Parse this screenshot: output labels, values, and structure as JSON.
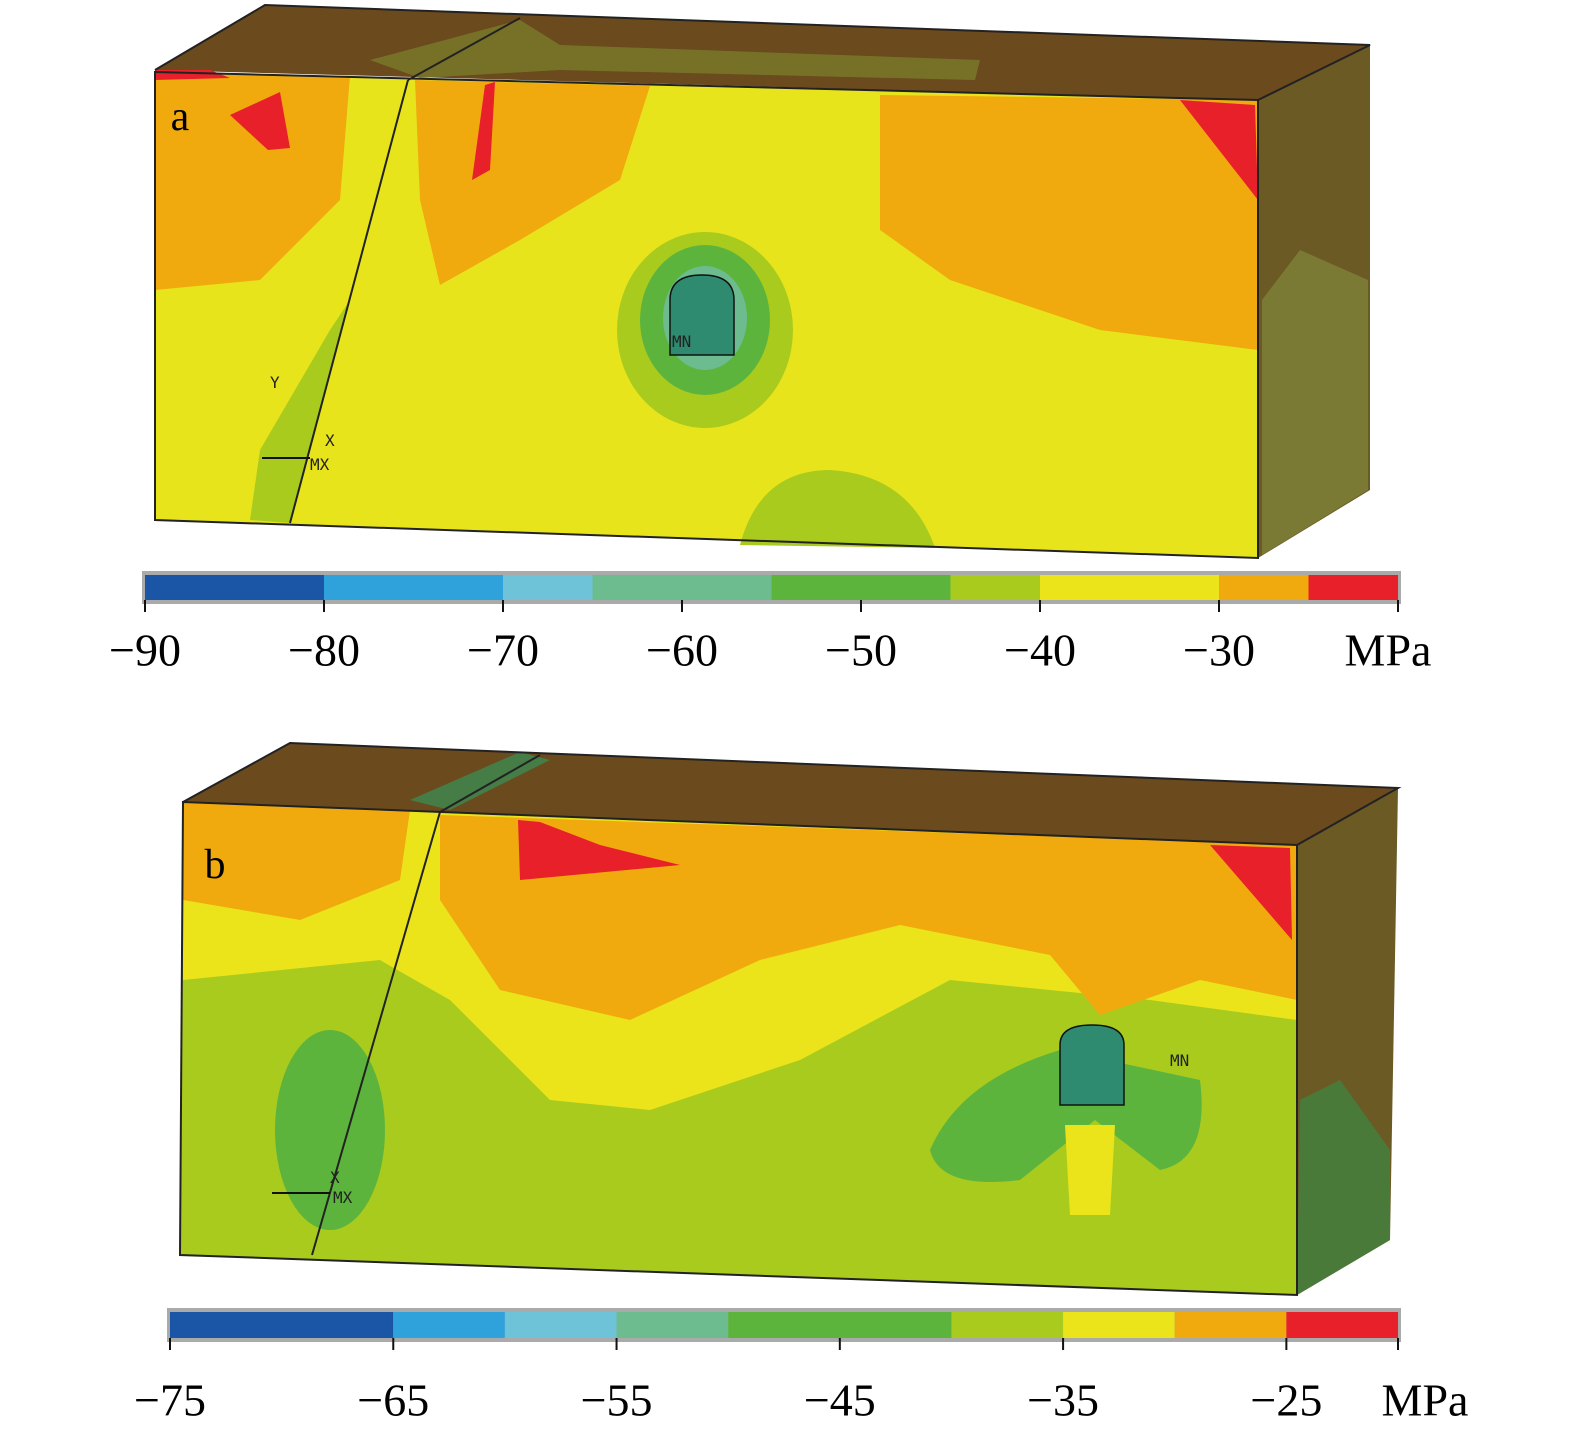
{
  "chart_data": [
    {
      "type": "colorbar",
      "panel_label": "a",
      "unit_label": "MPa",
      "bins": [
        -90,
        -80,
        -70,
        -65,
        -55,
        -45,
        -40,
        -30,
        -25,
        -20
      ],
      "colors": [
        "#1b55a5",
        "#2fa2dc",
        "#6ec3d9",
        "#6cbc8f",
        "#5db43c",
        "#a9cb1e",
        "#ebe41b",
        "#f0aa0e",
        "#e8202a"
      ],
      "xlim": [
        -90,
        -20
      ],
      "xticks": [
        {
          "value": -90,
          "label": "−90"
        },
        {
          "value": -80,
          "label": "−80"
        },
        {
          "value": -70,
          "label": "−70"
        },
        {
          "value": -60,
          "label": "−60"
        },
        {
          "value": -50,
          "label": "−50"
        },
        {
          "value": -40,
          "label": "−40"
        },
        {
          "value": -30,
          "label": "−30"
        }
      ],
      "annotations": [
        "MN",
        "MX",
        "X",
        "Y"
      ]
    },
    {
      "type": "colorbar",
      "panel_label": "b",
      "unit_label": "MPa",
      "bins": [
        -75,
        -65,
        -60,
        -55,
        -50,
        -40,
        -35,
        -30,
        -25,
        -20
      ],
      "colors": [
        "#1b55a5",
        "#2fa2dc",
        "#6ec3d9",
        "#6cbc8f",
        "#5db43c",
        "#a9cb1e",
        "#ebe41b",
        "#f0aa0e",
        "#e8202a"
      ],
      "xlim": [
        -75,
        -20
      ],
      "xticks": [
        {
          "value": -75,
          "label": "−75"
        },
        {
          "value": -65,
          "label": "−65"
        },
        {
          "value": -55,
          "label": "−55"
        },
        {
          "value": -45,
          "label": "−45"
        },
        {
          "value": -35,
          "label": "−35"
        },
        {
          "value": -25,
          "label": "−25"
        }
      ],
      "annotations": [
        "MN",
        "MX",
        "X"
      ]
    }
  ]
}
